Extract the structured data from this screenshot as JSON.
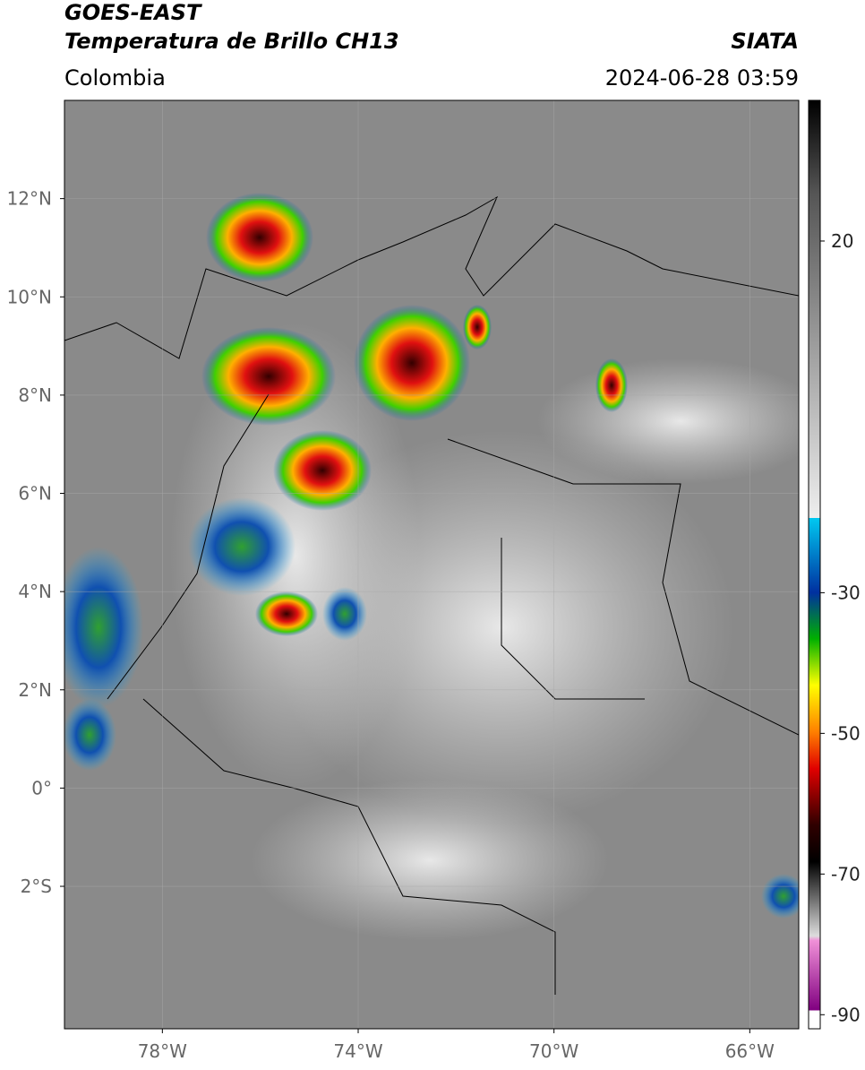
{
  "header": {
    "title": "GOES-EAST",
    "subtitle": "Temperatura de Brillo CH13",
    "source": "SIATA",
    "region": "Colombia",
    "datetime": "2024-06-28 03:59"
  },
  "map": {
    "xlim": [
      -80,
      -65
    ],
    "ylim": [
      -4.9,
      14
    ],
    "grid": true,
    "xticks": [
      {
        "value": -78,
        "label": "78°W"
      },
      {
        "value": -74,
        "label": "74°W"
      },
      {
        "value": -70,
        "label": "70°W"
      },
      {
        "value": -66,
        "label": "66°W"
      }
    ],
    "yticks": [
      {
        "value": 12,
        "label": "12°N"
      },
      {
        "value": 10,
        "label": "10°N"
      },
      {
        "value": 8,
        "label": "8°N"
      },
      {
        "value": 6,
        "label": "6°N"
      },
      {
        "value": 4,
        "label": "4°N"
      },
      {
        "value": 2,
        "label": "2°N"
      },
      {
        "value": 0,
        "label": "0°"
      },
      {
        "value": -2,
        "label": "2°S"
      }
    ]
  },
  "colorbar": {
    "lim": [
      -92,
      40
    ],
    "ticks": [
      20,
      -30,
      -50,
      -70,
      -90
    ]
  }
}
